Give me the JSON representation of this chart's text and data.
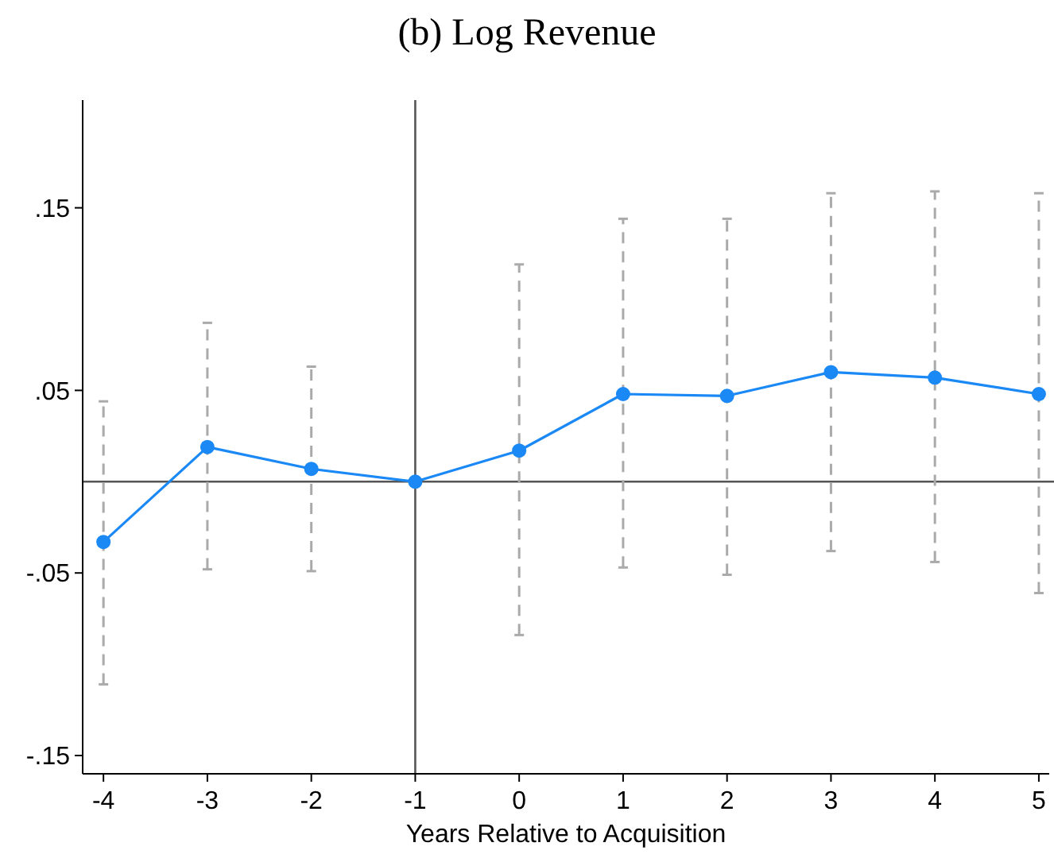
{
  "chart_data": {
    "type": "line",
    "title": "(b) Log Revenue",
    "xlabel": "Years Relative to Acquisition",
    "x": [
      -4,
      -3,
      -2,
      -1,
      0,
      1,
      2,
      3,
      4,
      5
    ],
    "series": [
      {
        "color": "#1a88f5",
        "values": [
          -0.033,
          0.019,
          0.007,
          0,
          0.017,
          0.048,
          0.047,
          0.06,
          0.057,
          0.048
        ],
        "errors": [
          [
            -0.111,
            0.044
          ],
          [
            -0.048,
            0.087
          ],
          [
            -0.049,
            0.063
          ],
          null,
          [
            -0.084,
            0.119
          ],
          [
            -0.047,
            0.144
          ],
          [
            -0.051,
            0.144
          ],
          [
            -0.038,
            0.158
          ],
          [
            -0.044,
            0.159
          ],
          [
            -0.061,
            0.158
          ]
        ]
      }
    ],
    "xlim": [
      -4.2,
      5.1
    ],
    "xticks": [
      -4,
      -3,
      -2,
      -1,
      0,
      1,
      2,
      3,
      4,
      5
    ],
    "ylim": [
      -0.16,
      0.209
    ],
    "yticks": [
      {
        "value": -0.15,
        "label": "-.15"
      },
      {
        "value": -0.05,
        "label": "-.05"
      },
      {
        "value": 0.05,
        "label": ".05"
      },
      {
        "value": 0.15,
        "label": ".15"
      }
    ],
    "ref_lines": [
      {
        "axis": "y",
        "value": 0
      },
      {
        "axis": "x",
        "value": -1
      }
    ],
    "marker": "circle",
    "line_style": "solid"
  }
}
